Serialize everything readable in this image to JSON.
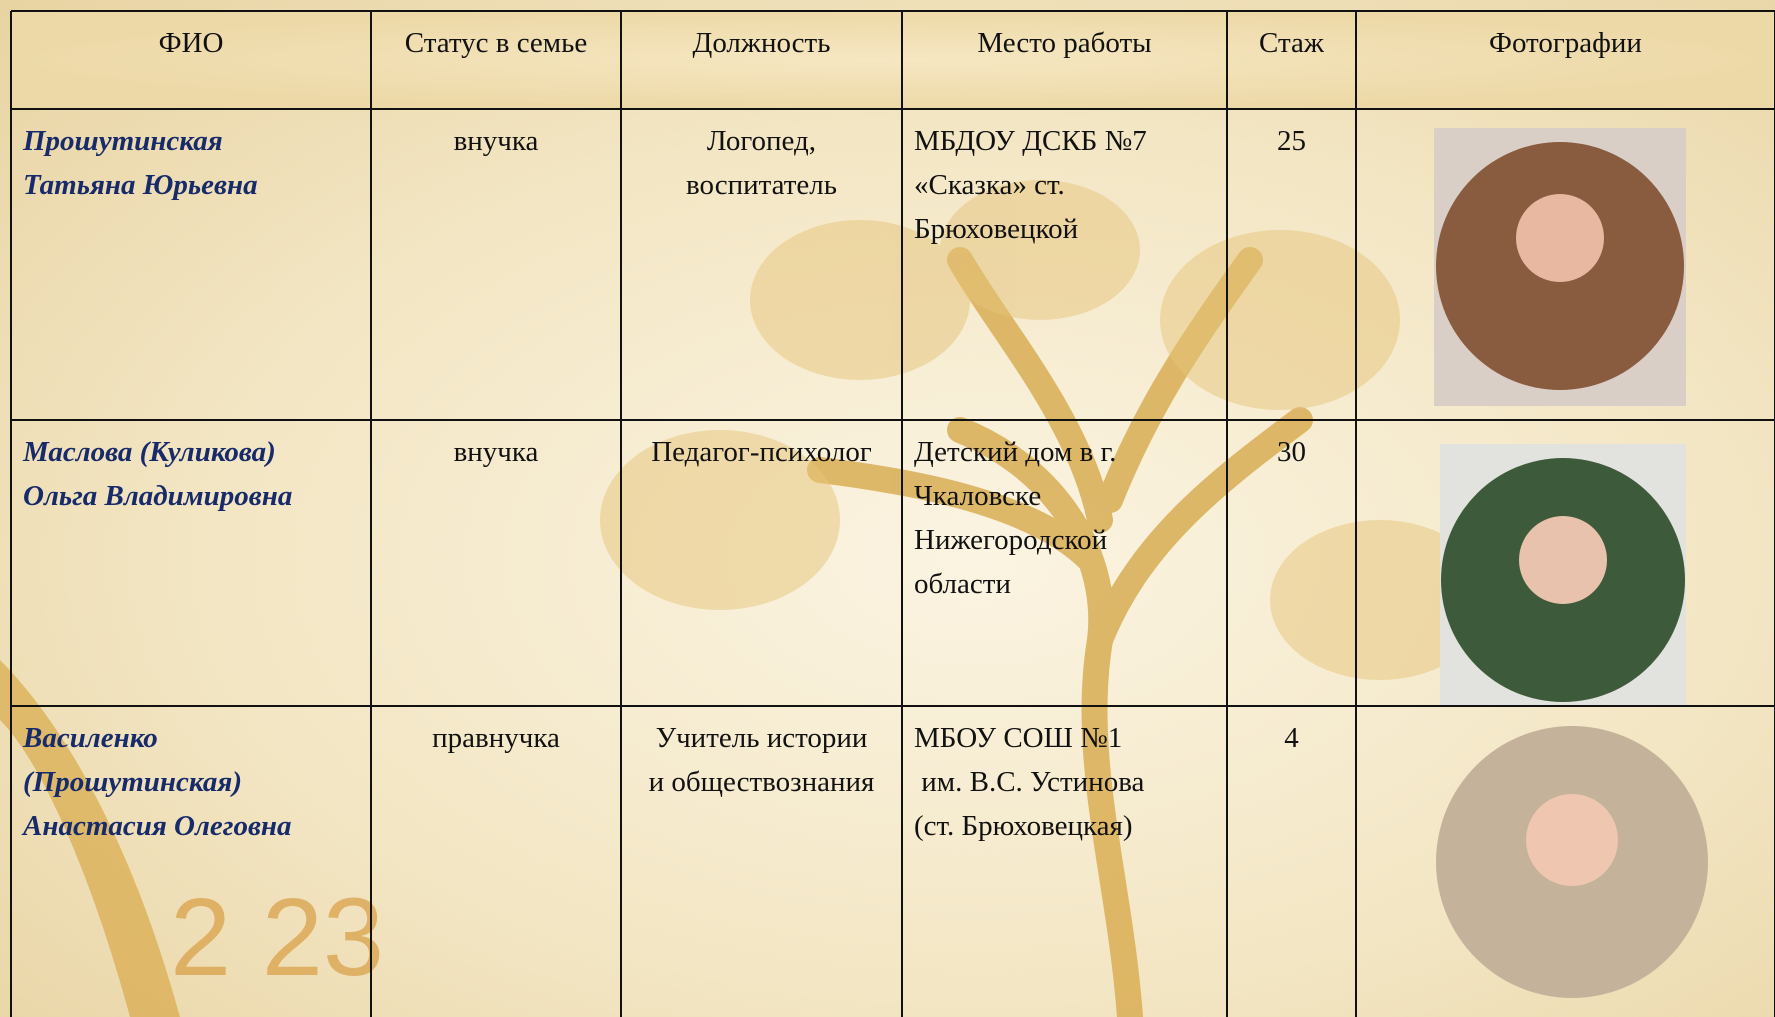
{
  "table": {
    "header": [
      "ФИО",
      "Статус в семье",
      "Должность",
      "Место работы",
      "Стаж",
      "Фотографии"
    ],
    "rows": [
      [
        [
          "Прошутинская",
          "Татьяна Юрьевна"
        ],
        [
          "внучка"
        ],
        [
          "Логопед,",
          "воспитатель"
        ],
        [
          "МБДОУ ДСКБ №7",
          "«Сказка» ст.",
          "Брюховецкой"
        ],
        25
      ],
      [
        [
          "Маслова (Куликова)",
          "Ольга Владимировна"
        ],
        [
          "внучка"
        ],
        [
          "Педагог-психолог"
        ],
        [
          "Детский дом в г.",
          "Чкаловске",
          "Нижегородской",
          "области"
        ],
        30
      ],
      [
        [
          "Василенко",
          "(Прошутинская)",
          "Анастасия Олеговна"
        ],
        [
          "правнучка"
        ],
        [
          "Учитель истории",
          "и обществознания"
        ],
        [
          "МБОУ СОШ №1",
          " им. В.С. Устинова",
          "(ст. Брюховецкая)"
        ],
        4
      ]
    ]
  }
}
